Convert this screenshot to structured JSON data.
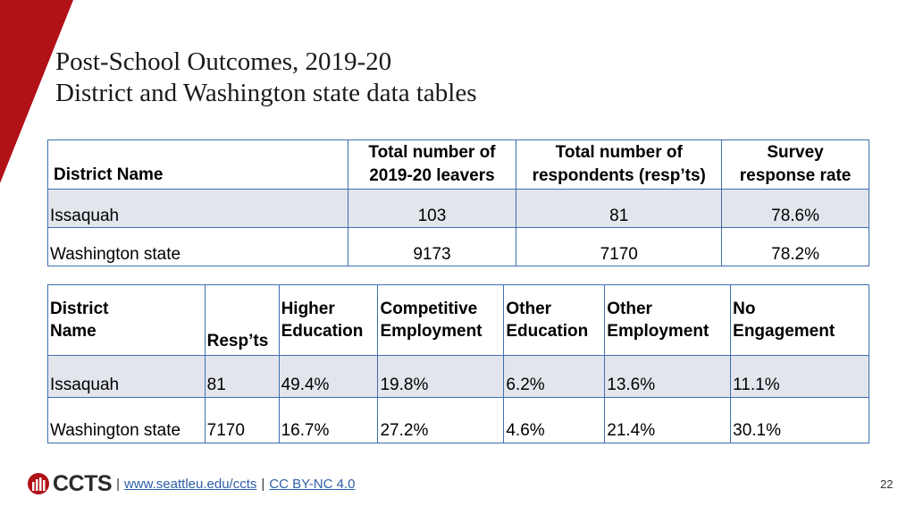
{
  "slide": {
    "title_line1": "Post-School Outcomes, 2019-20",
    "title_line2": "District and Washington state data tables",
    "page_number": "22"
  },
  "table1": {
    "headers": [
      "District Name",
      "Total number of 2019-20 leavers",
      "Total number of respondents (resp’ts)",
      "Survey response rate"
    ],
    "header_lines": {
      "col1": [
        "Total number of",
        "2019-20 leavers"
      ],
      "col2": [
        "Total number of",
        "respondents (resp’ts)"
      ],
      "col3": [
        "Survey",
        "response rate"
      ]
    },
    "rows": [
      [
        "Issaquah",
        "103",
        "81",
        "78.6%"
      ],
      [
        "Washington state",
        "9173",
        "7170",
        "78.2%"
      ]
    ]
  },
  "table2": {
    "header_lines": [
      [
        "District",
        "Name"
      ],
      [
        "",
        "Resp’ts"
      ],
      [
        "Higher",
        "Education"
      ],
      [
        "Competitive",
        "Employment"
      ],
      [
        "Other",
        "Education"
      ],
      [
        "Other",
        "Employment"
      ],
      [
        "No",
        "Engagement"
      ]
    ],
    "rows": [
      [
        "Issaquah",
        "81",
        "49.4%",
        "19.8%",
        "6.2%",
        "13.6%",
        "11.1%"
      ],
      [
        "Washington state",
        "7170",
        "16.7%",
        "27.2%",
        "4.6%",
        "21.4%",
        "30.1%"
      ]
    ]
  },
  "footer": {
    "logo_text": "CCTS",
    "separator": "|",
    "link1": "www.seattleu.edu/ccts",
    "link2": "CC BY-NC 4.0"
  },
  "colors": {
    "accent_red": "#b01217",
    "table_border": "#3f6fae",
    "row_shade": "#e3e5ed",
    "link": "#2f5fa8"
  }
}
